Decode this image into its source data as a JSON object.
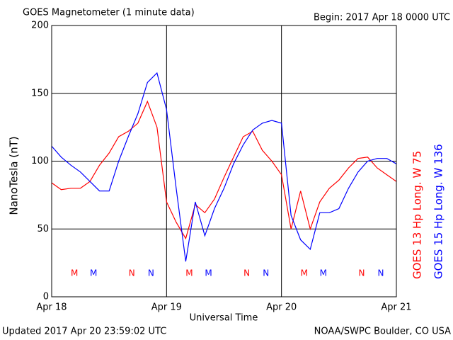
{
  "chart_data": {
    "type": "line",
    "title": "GOES Magnetometer (1 minute data)",
    "subtitle": "Begin:  2017 Apr 18 0000 UTC",
    "x_label": "Universal Time",
    "y_label": "NanoTesla (nT)",
    "footer_left": "Updated 2017 Apr 20 23:59:02 UTC",
    "footer_right": "NOAA/SWPC Boulder, CO USA",
    "x": [
      0,
      2,
      4,
      6,
      8,
      10,
      12,
      14,
      16,
      18,
      20,
      22,
      24,
      26,
      28,
      30,
      32,
      34,
      36,
      38,
      40,
      42,
      44,
      46,
      48,
      50,
      52,
      54,
      56,
      58,
      60,
      62,
      64,
      66,
      68,
      70,
      72
    ],
    "series": [
      {
        "name": "GOES 13 Hp  Long. W 75",
        "color": "#ff0000",
        "values": [
          84,
          79,
          80,
          80,
          85,
          97,
          106,
          118,
          122,
          128,
          144,
          125,
          70,
          55,
          43,
          68,
          62,
          72,
          88,
          103,
          118,
          122,
          108,
          100,
          90,
          50,
          78,
          50,
          70,
          80,
          86,
          95,
          102,
          103,
          95,
          90,
          85
        ]
      },
      {
        "name": "GOES 15 Hp  Long. W 136",
        "color": "#0000ff",
        "values": [
          111,
          103,
          97,
          92,
          85,
          78,
          78,
          100,
          118,
          135,
          158,
          165,
          138,
          80,
          26,
          70,
          45,
          65,
          80,
          98,
          112,
          123,
          128,
          130,
          128,
          60,
          42,
          35,
          62,
          62,
          65,
          80,
          92,
          100,
          102,
          102,
          98
        ]
      }
    ],
    "markers": [
      {
        "label": "M",
        "x": 4.75,
        "series": 0
      },
      {
        "label": "M",
        "x": 8.75,
        "series": 1
      },
      {
        "label": "N",
        "x": 16.75,
        "series": 0
      },
      {
        "label": "N",
        "x": 20.75,
        "series": 1
      },
      {
        "label": "M",
        "x": 28.75,
        "series": 0
      },
      {
        "label": "M",
        "x": 32.75,
        "series": 1
      },
      {
        "label": "N",
        "x": 40.75,
        "series": 0
      },
      {
        "label": "N",
        "x": 44.75,
        "series": 1
      },
      {
        "label": "M",
        "x": 52.75,
        "series": 0
      },
      {
        "label": "M",
        "x": 56.75,
        "series": 1
      },
      {
        "label": "N",
        "x": 64.75,
        "series": 0
      },
      {
        "label": "N",
        "x": 68.75,
        "series": 1
      }
    ],
    "xlim": [
      0,
      72
    ],
    "xticks": [
      {
        "value": 0,
        "label": "Apr 18"
      },
      {
        "value": 24,
        "label": "Apr 19"
      },
      {
        "value": 48,
        "label": "Apr 20"
      },
      {
        "value": 72,
        "label": "Apr 21"
      }
    ],
    "ylim": [
      0,
      200
    ],
    "yticks": [
      0,
      50,
      100,
      150,
      200
    ],
    "grid": true
  }
}
